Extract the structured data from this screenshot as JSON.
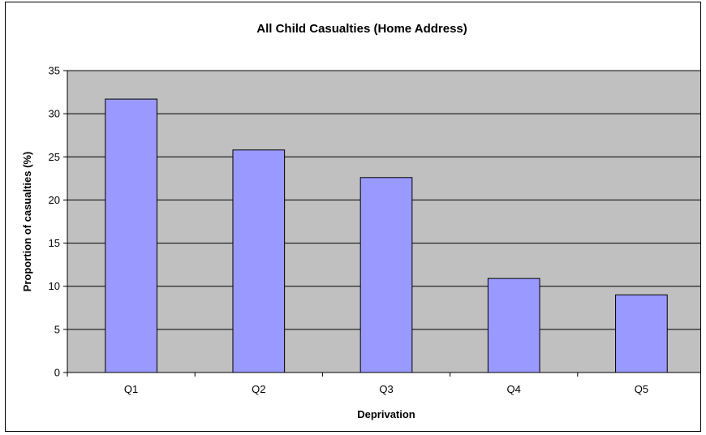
{
  "colors": {
    "plot_background": "#c0c0c0",
    "bar_fill": "#9999ff",
    "bar_stroke": "#000000",
    "gridline": "#000000"
  },
  "chart_data": {
    "type": "bar",
    "title": "All Child Casualties (Home Address)",
    "xlabel": "Deprivation",
    "ylabel": "Proportion of casualties (%)",
    "categories": [
      "Q1",
      "Q2",
      "Q3",
      "Q4",
      "Q5"
    ],
    "values": [
      31.7,
      25.8,
      22.6,
      10.9,
      9.0
    ],
    "ylim": [
      0,
      35
    ],
    "yticks": [
      0,
      5,
      10,
      15,
      20,
      25,
      30,
      35
    ],
    "grid": true,
    "legend": "none"
  }
}
